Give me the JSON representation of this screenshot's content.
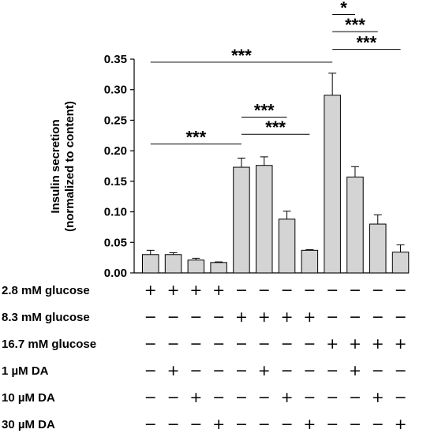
{
  "chart_data": {
    "type": "bar",
    "ylabel_line1": "Insulin secretion",
    "ylabel_line2": "(normalized to content)",
    "ylim": [
      0,
      0.35
    ],
    "yticks": [
      "0.00",
      "0.05",
      "0.10",
      "0.15",
      "0.20",
      "0.25",
      "0.30",
      "0.35"
    ],
    "bar_color": "#d4d4d4",
    "values": [
      0.03,
      0.03,
      0.021,
      0.017,
      0.173,
      0.176,
      0.088,
      0.037,
      0.291,
      0.157,
      0.08,
      0.034
    ],
    "errors": [
      0.007,
      0.003,
      0.003,
      0.001,
      0.015,
      0.014,
      0.013,
      0.001,
      0.036,
      0.017,
      0.015,
      0.012
    ],
    "conditions": [
      {
        "label": "2.8 mM glucose",
        "marks": [
          "+",
          "+",
          "+",
          "+",
          "−",
          "−",
          "−",
          "−",
          "−",
          "−",
          "−",
          "−"
        ]
      },
      {
        "label": "8.3 mM glucose",
        "marks": [
          "−",
          "−",
          "−",
          "−",
          "+",
          "+",
          "+",
          "+",
          "−",
          "−",
          "−",
          "−"
        ]
      },
      {
        "label": "16.7 mM glucose",
        "marks": [
          "−",
          "−",
          "−",
          "−",
          "−",
          "−",
          "−",
          "−",
          "+",
          "+",
          "+",
          "+"
        ]
      },
      {
        "label": "1 µM DA",
        "marks": [
          "−",
          "+",
          "−",
          "−",
          "−",
          "+",
          "−",
          "−",
          "−",
          "+",
          "−",
          "−"
        ]
      },
      {
        "label": "10 µM DA",
        "marks": [
          "−",
          "−",
          "+",
          "−",
          "−",
          "−",
          "+",
          "−",
          "−",
          "−",
          "+",
          "−"
        ]
      },
      {
        "label": "30 µM DA",
        "marks": [
          "−",
          "−",
          "−",
          "+",
          "−",
          "−",
          "−",
          "+",
          "−",
          "−",
          "−",
          "+"
        ]
      }
    ],
    "significance": [
      {
        "from": 0,
        "to": 4,
        "y": 0.211,
        "label": "***"
      },
      {
        "from": 4,
        "to": 6,
        "y": 0.255,
        "label": "***"
      },
      {
        "from": 4,
        "to": 7,
        "y": 0.227,
        "label": "***"
      },
      {
        "from": 0,
        "to": 8,
        "y": 0.345,
        "label": "***"
      },
      {
        "from": 8,
        "to": 9,
        "y": 0.423,
        "label": "*"
      },
      {
        "from": 8,
        "to": 10,
        "y": 0.395,
        "label": "***"
      },
      {
        "from": 8,
        "to": 11,
        "y": 0.366,
        "label": "***"
      }
    ]
  }
}
